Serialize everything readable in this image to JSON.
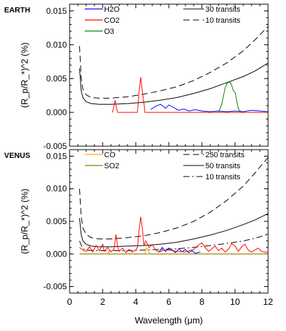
{
  "chart_data": [
    {
      "type": "line",
      "panel_label": "EARTH",
      "ylabel": "(R_p/R_*)^2 (%)",
      "xlim": [
        0,
        12
      ],
      "ylim": [
        -0.005,
        0.016
      ],
      "yticks": [
        "-0.005",
        "0.000",
        "0.005",
        "0.010",
        "0.015"
      ],
      "legend_left": [
        {
          "name": "H2O",
          "color": "#0000ff"
        },
        {
          "name": "CO2",
          "color": "#ff0000"
        },
        {
          "name": "O3",
          "color": "#008000"
        }
      ],
      "legend_right": [
        {
          "name": "30 transits",
          "style": "solid"
        },
        {
          "name": "10 transits",
          "style": "dashed"
        }
      ],
      "series": [
        {
          "name": "30 transits",
          "style": "solid",
          "color": "#000000",
          "x": [
            0.6,
            0.7,
            0.8,
            1.0,
            1.3,
            1.8,
            2.5,
            3.5,
            4.5,
            5.5,
            6.5,
            7.5,
            8.5,
            9.5,
            10.5,
            11.2,
            12.0
          ],
          "y": [
            0.0065,
            0.0032,
            0.0022,
            0.0016,
            0.0013,
            0.0012,
            0.0012,
            0.0013,
            0.0015,
            0.0018,
            0.0022,
            0.0028,
            0.0035,
            0.0044,
            0.0053,
            0.0061,
            0.0073
          ]
        },
        {
          "name": "10 transits",
          "style": "dashed",
          "color": "#000000",
          "x": [
            0.6,
            0.7,
            0.8,
            1.0,
            1.3,
            1.8,
            2.5,
            3.5,
            4.5,
            5.5,
            6.5,
            7.5,
            8.5,
            9.5,
            10.5,
            11.2,
            12.0
          ],
          "y": [
            0.0098,
            0.0052,
            0.0034,
            0.0026,
            0.0022,
            0.0021,
            0.0021,
            0.0023,
            0.0027,
            0.0032,
            0.0038,
            0.0047,
            0.0059,
            0.0073,
            0.0091,
            0.0107,
            0.0127
          ]
        },
        {
          "name": "H2O",
          "color": "#0000ff",
          "x": [
            4.9,
            5.2,
            5.5,
            5.8,
            6.0,
            6.3,
            6.6,
            6.9,
            7.2,
            7.6,
            8.0,
            8.5,
            9.0,
            9.5,
            10.0,
            10.5,
            11.0,
            11.5,
            12.0
          ],
          "y": [
            0.0004,
            0.0009,
            0.0012,
            0.0006,
            0.0011,
            0.0007,
            0.0003,
            0.0005,
            0.0002,
            0.0004,
            0.0002,
            0.0001,
            0.0002,
            0.0001,
            0.0002,
            0.0001,
            0.0003,
            0.0002,
            0.0001
          ]
        },
        {
          "name": "CO2",
          "color": "#ff0000",
          "x": [
            2.6,
            2.7,
            2.75,
            2.8,
            2.9,
            4.1,
            4.2,
            4.3,
            4.4,
            4.5,
            4.55,
            14
          ],
          "y": [
            0.0,
            0.0012,
            0.0018,
            0.001,
            0.0,
            0.0,
            0.003,
            0.0052,
            0.003,
            0.0012,
            0.0,
            0.0
          ]
        },
        {
          "name": "O3",
          "color": "#008000",
          "x": [
            9.0,
            9.2,
            9.4,
            9.5,
            9.6,
            9.7,
            9.8,
            9.9,
            10.0,
            10.1,
            10.2,
            10.4
          ],
          "y": [
            0.0,
            0.0012,
            0.0036,
            0.0042,
            0.0045,
            0.0044,
            0.004,
            0.0032,
            0.003,
            0.0018,
            0.0005,
            0.0
          ]
        }
      ]
    },
    {
      "type": "line",
      "panel_label": "VENUS",
      "ylabel": "(R_p/R_*)^2 (%)",
      "xlabel": "Wavelength (μm)",
      "xlim": [
        0,
        12
      ],
      "ylim": [
        -0.006,
        0.016
      ],
      "xticks": [
        "0",
        "2",
        "4",
        "6",
        "8",
        "10",
        "12"
      ],
      "yticks": [
        "-0.005",
        "0.000",
        "0.005",
        "0.010",
        "0.015"
      ],
      "legend_left": [
        {
          "name": "CO",
          "color": "#ffa500"
        },
        {
          "name": "SO2",
          "color": "#808000"
        }
      ],
      "legend_right": [
        {
          "name": "250 transits",
          "style": "dashed"
        },
        {
          "name": "50 transits",
          "style": "solid"
        },
        {
          "name": "10 transits",
          "style": "dashdot"
        }
      ],
      "series": [
        {
          "name": "250 transits",
          "style": "dashed",
          "color": "#000000",
          "x": [
            0.6,
            0.7,
            0.8,
            1.0,
            1.3,
            1.8,
            2.5,
            3.5,
            4.5,
            5.5,
            6.5,
            7.5,
            8.5,
            9.5,
            10.5,
            11.2,
            12.0
          ],
          "y": [
            0.01,
            0.0058,
            0.004,
            0.003,
            0.0025,
            0.0023,
            0.0023,
            0.0025,
            0.0028,
            0.0033,
            0.004,
            0.005,
            0.0064,
            0.0082,
            0.0104,
            0.0124,
            0.0148
          ]
        },
        {
          "name": "50 transits",
          "style": "solid",
          "color": "#000000",
          "x": [
            0.6,
            0.7,
            0.8,
            1.0,
            1.3,
            1.8,
            2.5,
            3.5,
            4.5,
            5.5,
            6.5,
            7.5,
            8.5,
            9.5,
            10.5,
            11.2,
            12.0
          ],
          "y": [
            0.0055,
            0.003,
            0.002,
            0.0015,
            0.0012,
            0.0011,
            0.0011,
            0.0012,
            0.0013,
            0.0015,
            0.0018,
            0.0023,
            0.0029,
            0.0036,
            0.0045,
            0.0052,
            0.0062
          ]
        },
        {
          "name": "10 transits",
          "style": "dashdot",
          "color": "#000000",
          "x": [
            0.6,
            0.8,
            1.0,
            1.5,
            2.5,
            3.5,
            4.5,
            5.5,
            6.5,
            7.5,
            8.5,
            9.5,
            10.5,
            11.2,
            12.0
          ],
          "y": [
            0.002,
            0.0008,
            0.0006,
            0.0005,
            0.0005,
            0.0005,
            0.0006,
            0.0007,
            0.0008,
            0.001,
            0.0013,
            0.0016,
            0.002,
            0.0024,
            0.003
          ]
        },
        {
          "name": "CO",
          "color": "#ffa500",
          "x": [
            0.6,
            2.3,
            2.35,
            2.4,
            2.5,
            4.55,
            4.65,
            4.75,
            4.9,
            12.0
          ],
          "y": [
            0.0,
            0.0,
            0.0005,
            0.0,
            0.0,
            0.0,
            0.001,
            0.0004,
            0.0,
            0.0
          ]
        },
        {
          "name": "SO2",
          "color": "#808000",
          "x": [
            0.6,
            12.0
          ],
          "y": [
            0.0,
            0.0
          ]
        },
        {
          "name": "H2O",
          "color": "#0000ff",
          "x": [
            5.4,
            5.6,
            5.8,
            6.0,
            6.2,
            6.4,
            6.6,
            6.8,
            7.0,
            7.2,
            7.4,
            7.6,
            7.9
          ],
          "y": [
            0.0003,
            0.001,
            0.0004,
            0.0009,
            0.0006,
            0.0002,
            0.0008,
            0.0003,
            0.0007,
            0.0002,
            0.0005,
            0.0001,
            0.0003
          ]
        },
        {
          "name": "CO2",
          "color": "#ff0000",
          "x": [
            0.6,
            0.8,
            1.0,
            1.2,
            1.4,
            1.6,
            1.8,
            2.0,
            2.1,
            2.3,
            2.5,
            2.7,
            2.8,
            2.9,
            3.0,
            3.2,
            3.4,
            3.6,
            3.8,
            4.0,
            4.1,
            4.2,
            4.3,
            4.4,
            4.5,
            4.6,
            4.8,
            5.0,
            5.2,
            5.4,
            5.6,
            6.0,
            6.5,
            7.0,
            7.5,
            7.8,
            8.0,
            8.2,
            8.4,
            8.8,
            9.0,
            9.2,
            9.4,
            9.6,
            9.8,
            10.0,
            10.2,
            10.4,
            10.6,
            10.8,
            11.0,
            11.4,
            11.6,
            11.8,
            12.0
          ],
          "y": [
            0.001,
            0.0006,
            0.0004,
            0.0011,
            0.0003,
            0.0013,
            0.0005,
            0.0015,
            0.0004,
            0.001,
            0.0003,
            0.0008,
            0.003,
            0.0012,
            0.0004,
            0.0009,
            0.0002,
            0.0007,
            0.0003,
            0.0006,
            0.001,
            0.0036,
            0.0057,
            0.0038,
            0.0012,
            0.002,
            0.001,
            0.0014,
            0.0006,
            0.0003,
            0.0005,
            0.0006,
            0.0004,
            0.0003,
            0.0007,
            0.0014,
            0.0017,
            0.001,
            0.0004,
            0.0012,
            0.0005,
            0.0009,
            0.0003,
            0.0007,
            0.0016,
            0.0012,
            0.0004,
            0.0011,
            0.0015,
            0.0006,
            0.0003,
            0.0009,
            0.0004,
            0.0003,
            0.0002
          ]
        }
      ]
    }
  ]
}
